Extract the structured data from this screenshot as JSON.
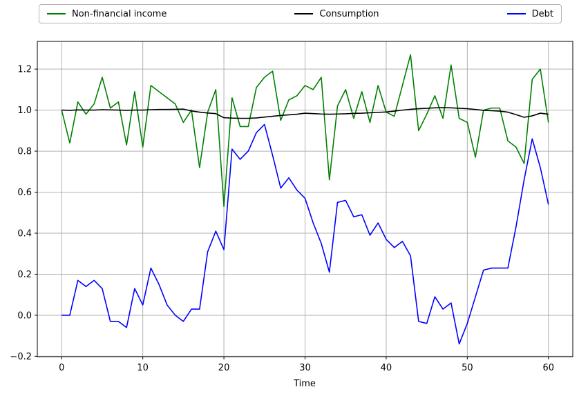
{
  "figure": {
    "background": "#ffffff"
  },
  "chart_data": {
    "type": "line",
    "title": "",
    "xlabel": "Time",
    "ylabel": "",
    "grid": true,
    "grid_color": "#b0b0b0",
    "axis_color": "#000000",
    "legend_position": "top-expanded",
    "legend_border_color": "#b3b3b3",
    "xlim": [
      -3,
      63
    ],
    "ylim": [
      -0.202,
      1.335
    ],
    "xticks": [
      0,
      10,
      20,
      30,
      40,
      50,
      60
    ],
    "yticks": [
      -0.2,
      0.0,
      0.2,
      0.4,
      0.6,
      0.8,
      1.0,
      1.2
    ],
    "x": [
      0,
      1,
      2,
      3,
      4,
      5,
      6,
      7,
      8,
      9,
      10,
      11,
      12,
      13,
      14,
      15,
      16,
      17,
      18,
      19,
      20,
      21,
      22,
      23,
      24,
      25,
      26,
      27,
      28,
      29,
      30,
      31,
      32,
      33,
      34,
      35,
      36,
      37,
      38,
      39,
      40,
      41,
      42,
      43,
      44,
      45,
      46,
      47,
      48,
      49,
      50,
      51,
      52,
      53,
      54,
      55,
      56,
      57,
      58,
      59,
      60
    ],
    "series": [
      {
        "name": "Non-financial income",
        "color": "#008000",
        "values": [
          1.0,
          0.84,
          1.04,
          0.98,
          1.03,
          1.16,
          1.01,
          1.04,
          0.83,
          1.09,
          0.82,
          1.12,
          1.09,
          1.06,
          1.03,
          0.94,
          1.0,
          0.72,
          0.99,
          1.1,
          0.53,
          1.06,
          0.92,
          0.92,
          1.11,
          1.16,
          1.19,
          0.95,
          1.05,
          1.07,
          1.12,
          1.1,
          1.16,
          0.66,
          1.02,
          1.1,
          0.96,
          1.09,
          0.94,
          1.12,
          0.99,
          0.97,
          1.12,
          1.27,
          0.9,
          0.98,
          1.07,
          0.96,
          1.22,
          0.96,
          0.94,
          0.77,
          1.0,
          1.01,
          1.01,
          0.85,
          0.82,
          0.74,
          1.15,
          1.2,
          0.94
        ]
      },
      {
        "name": "Consumption",
        "color": "#000000",
        "values": [
          1.0,
          0.999,
          1.001,
          1.0,
          1.0,
          1.002,
          1.001,
          1.0,
          0.999,
          1.0,
          1.0,
          1.002,
          1.003,
          1.003,
          1.004,
          1.005,
          0.996,
          0.99,
          0.986,
          0.983,
          0.963,
          0.961,
          0.96,
          0.96,
          0.962,
          0.966,
          0.97,
          0.974,
          0.977,
          0.98,
          0.985,
          0.983,
          0.981,
          0.98,
          0.981,
          0.982,
          0.984,
          0.985,
          0.987,
          0.989,
          0.991,
          0.995,
          1.0,
          1.004,
          1.007,
          1.009,
          1.011,
          1.012,
          1.011,
          1.009,
          1.007,
          1.003,
          0.999,
          0.997,
          0.995,
          0.99,
          0.978,
          0.965,
          0.972,
          0.985,
          0.98
        ]
      },
      {
        "name": "Debt",
        "color": "#0000ff",
        "values": [
          0.0,
          0.0,
          0.17,
          0.14,
          0.17,
          0.13,
          -0.03,
          -0.03,
          -0.06,
          0.13,
          0.05,
          0.23,
          0.15,
          0.05,
          0.0,
          -0.03,
          0.03,
          0.03,
          0.31,
          0.41,
          0.32,
          0.81,
          0.76,
          0.8,
          0.89,
          0.93,
          0.78,
          0.62,
          0.67,
          0.61,
          0.57,
          0.45,
          0.35,
          0.21,
          0.55,
          0.56,
          0.48,
          0.49,
          0.39,
          0.45,
          0.37,
          0.33,
          0.36,
          0.29,
          -0.03,
          -0.04,
          0.09,
          0.03,
          0.06,
          -0.14,
          -0.04,
          0.09,
          0.22,
          0.23,
          0.23,
          0.23,
          0.43,
          0.66,
          0.86,
          0.72,
          0.54
        ]
      }
    ]
  }
}
